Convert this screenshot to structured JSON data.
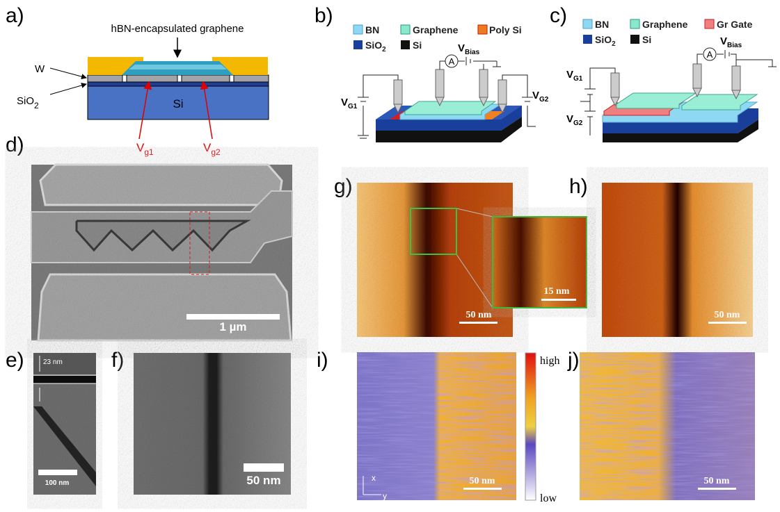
{
  "panels": {
    "a": {
      "label": "a)",
      "title": "hBN-encapsulated graphene",
      "metal": "W",
      "oxide": {
        "main": "SiO",
        "sub": "2"
      },
      "substrate": "Si",
      "gate1": {
        "main": "V",
        "sub": "g1"
      },
      "gate2": {
        "main": "V",
        "sub": "g2"
      }
    },
    "b": {
      "label": "b)",
      "legend": [
        "BN",
        "Graphene",
        "Poly Si",
        {
          "main": "SiO",
          "sub": "2"
        },
        "Si"
      ],
      "ammeter": "A",
      "bias": {
        "main": "V",
        "sub": "Bias"
      },
      "gate1": {
        "main": "V",
        "sub": "G1"
      },
      "gate2": {
        "main": "V",
        "sub": "G2"
      }
    },
    "c": {
      "label": "c)",
      "legend": [
        "BN",
        "Graphene",
        "Gr Gate",
        {
          "main": "SiO",
          "sub": "2"
        },
        "Si"
      ],
      "ammeter": "A",
      "bias": {
        "main": "V",
        "sub": "Bias"
      },
      "gate1": {
        "main": "V",
        "sub": "G1"
      },
      "gate2": {
        "main": "V",
        "sub": "G2"
      }
    },
    "d": {
      "label": "d)",
      "scale": "1 µm"
    },
    "e": {
      "label": "e)",
      "gap": "23 nm",
      "scale": "100 nm"
    },
    "f": {
      "label": "f)",
      "scale": "50 nm"
    },
    "g": {
      "label": "g)",
      "scale": "50 nm",
      "inset_scale": "15 nm"
    },
    "h": {
      "label": "h)",
      "scale": "50 nm"
    },
    "i": {
      "label": "i)",
      "high": "high",
      "low": "low",
      "axis_x": "x",
      "axis_y": "y",
      "scale": "50 nm"
    },
    "j": {
      "label": "j)",
      "scale": "50 nm"
    }
  }
}
